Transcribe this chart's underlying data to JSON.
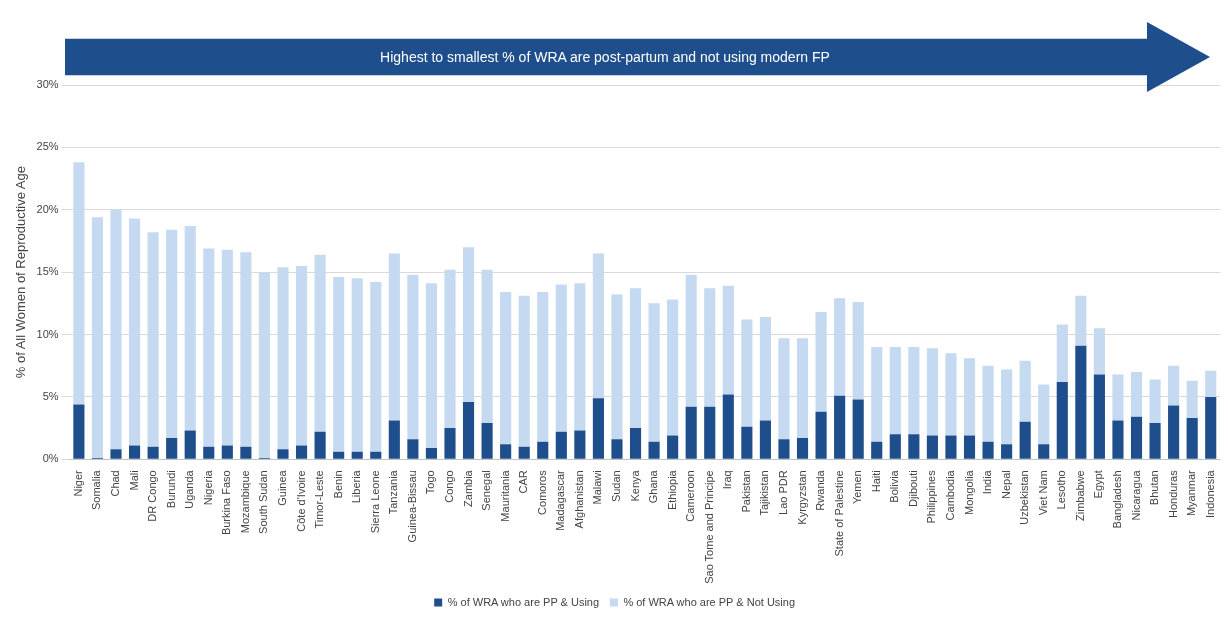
{
  "chart_data": {
    "type": "bar",
    "stacked": true,
    "title": "Highest to smallest % of WRA are post-partum and not using modern FP",
    "ylabel": "% of All Women of Reproductive Age",
    "categories": [
      "Niger",
      "Somalia",
      "Chad",
      "Mali",
      "DR Congo",
      "Burundi",
      "Uganda",
      "Nigeria",
      "Burkina Faso",
      "Mozambique",
      "South Sudan",
      "Guinea",
      "Côte d'Ivoire",
      "Timor-Leste",
      "Benin",
      "Liberia",
      "Sierra Leone",
      "Tanzania",
      "Guinea-Bissau",
      "Togo",
      "Congo",
      "Zambia",
      "Senegal",
      "Mauritania",
      "CAR",
      "Comoros",
      "Madagascar",
      "Afghanistan",
      "Malawi",
      "Sudan",
      "Kenya",
      "Ghana",
      "Ethiopia",
      "Cameroon",
      "Sao Tome and Principe",
      "Iraq",
      "Pakistan",
      "Tajikistan",
      "Lao PDR",
      "Kyrgyzstan",
      "Rwanda",
      "State of Palestine",
      "Yemen",
      "Haiti",
      "Bolivia",
      "Djibouti",
      "Philippines",
      "Cambodia",
      "Mongolia",
      "India",
      "Nepal",
      "Uzbekistan",
      "Viet Nam",
      "Lesotho",
      "Zimbabwe",
      "Egypt",
      "Bangladesh",
      "Nicaragua",
      "Bhutan",
      "Honduras",
      "Myanmar",
      "Indonesia"
    ],
    "series": [
      {
        "name": "% of WRA who are PP & Using",
        "color": "#1f4e8c",
        "values": [
          4.4,
          0.1,
          0.8,
          1.1,
          1.0,
          1.7,
          2.3,
          1.0,
          1.1,
          1.0,
          0.1,
          0.8,
          1.1,
          2.2,
          0.6,
          0.6,
          0.6,
          3.1,
          1.6,
          0.9,
          2.5,
          4.6,
          2.9,
          1.2,
          1.0,
          1.4,
          2.2,
          2.3,
          4.9,
          1.6,
          2.5,
          1.4,
          1.9,
          4.2,
          4.2,
          5.2,
          2.6,
          3.1,
          1.6,
          1.7,
          3.8,
          5.1,
          4.8,
          1.4,
          2.0,
          2.0,
          1.9,
          1.9,
          1.9,
          1.4,
          1.2,
          3.0,
          1.2,
          6.2,
          9.1,
          6.8,
          3.1,
          3.4,
          2.9,
          4.3,
          3.3,
          5.0
        ]
      },
      {
        "name": "% of WRA who are PP & Not Using",
        "color": "#c5d9f1",
        "values": [
          19.4,
          19.3,
          19.2,
          18.2,
          17.2,
          16.7,
          16.4,
          15.9,
          15.7,
          15.6,
          14.9,
          14.6,
          14.4,
          14.2,
          14.0,
          13.9,
          13.6,
          13.4,
          13.2,
          13.2,
          12.7,
          12.4,
          12.3,
          12.2,
          12.1,
          12.0,
          11.8,
          11.8,
          11.6,
          11.6,
          11.2,
          11.1,
          10.9,
          10.6,
          9.5,
          8.7,
          8.6,
          8.3,
          8.1,
          8.0,
          8.0,
          7.8,
          7.8,
          7.6,
          7.0,
          7.0,
          7.0,
          6.6,
          6.2,
          6.1,
          6.0,
          4.9,
          4.8,
          4.6,
          4.0,
          3.7,
          3.7,
          3.6,
          3.5,
          3.2,
          3.0,
          2.1
        ]
      }
    ],
    "ylim": [
      0,
      30
    ],
    "yticks": [
      {
        "value": 0,
        "label": "0%"
      },
      {
        "value": 5,
        "label": "5%"
      },
      {
        "value": 10,
        "label": "10%"
      },
      {
        "value": 15,
        "label": "15%"
      },
      {
        "value": 20,
        "label": "20%"
      },
      {
        "value": 25,
        "label": "25%"
      },
      {
        "value": 30,
        "label": "30%"
      }
    ],
    "grid": "y",
    "legend": "bottom"
  }
}
